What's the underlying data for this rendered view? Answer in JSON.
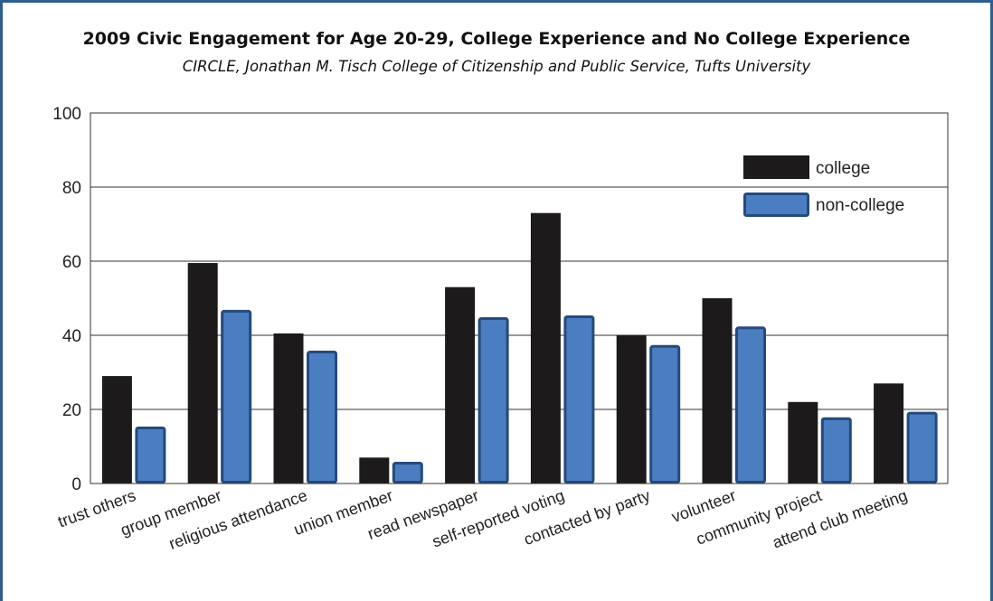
{
  "title": "2009 Civic Engagement for Age 20-29, College Experience and No College Experience",
  "subtitle": "CIRCLE, Jonathan M. Tisch College of Citizenship and Public Service, Tufts University",
  "colors": {
    "college": "#1c1a1b",
    "non_college": "#4a7ec1",
    "non_college_border": "#254a7c",
    "frame": "#2f5f8f",
    "grid": "#333333"
  },
  "chart_data": {
    "type": "bar",
    "title": "2009 Civic Engagement for Age 20-29, College Experience and No College Experience",
    "subtitle": "CIRCLE, Jonathan M. Tisch College of Citizenship and Public Service, Tufts University",
    "categories": [
      "trust others",
      "group member",
      "religious attendance",
      "union member",
      "read newspaper",
      "self-reported voting",
      "contacted by party",
      "volunteer",
      "community project",
      "attend club meeting"
    ],
    "series": [
      {
        "name": "college",
        "values": [
          29,
          59.5,
          40.5,
          7,
          53,
          73,
          40,
          50,
          22,
          27
        ]
      },
      {
        "name": "non-college",
        "values": [
          15,
          46.5,
          35.5,
          5.5,
          44.5,
          45,
          37,
          42,
          17.5,
          19
        ]
      }
    ],
    "xlabel": "",
    "ylabel": "",
    "ylim": [
      0,
      100
    ],
    "yticks": [
      0,
      20,
      40,
      60,
      80,
      100
    ],
    "grid": true,
    "legend_position": "top-right"
  }
}
